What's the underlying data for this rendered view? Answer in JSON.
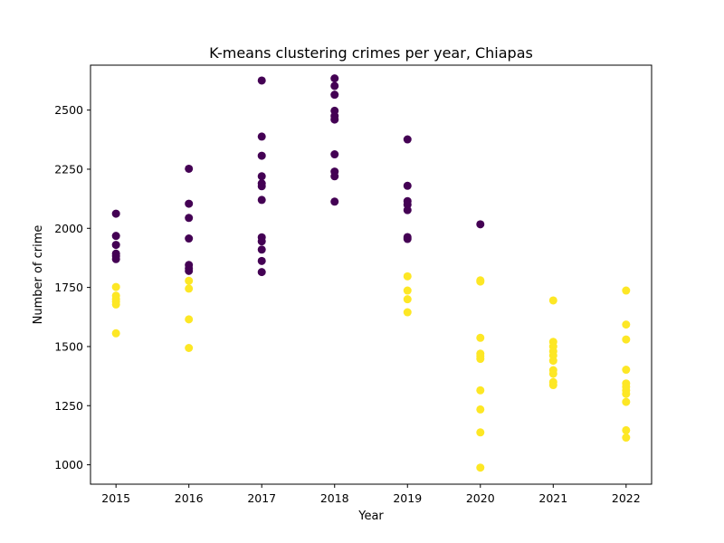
{
  "chart_data": {
    "type": "scatter",
    "title": "K-means clustering crimes per year, Chiapas",
    "xlabel": "Year",
    "ylabel": "Number of crime",
    "xlim": [
      2014.65,
      2022.35
    ],
    "ylim": [
      918,
      2690
    ],
    "x_ticks": [
      2015,
      2016,
      2017,
      2018,
      2019,
      2020,
      2021,
      2022
    ],
    "y_ticks": [
      1000,
      1250,
      1500,
      1750,
      2000,
      2250,
      2500
    ],
    "grid": false,
    "colors": {
      "cluster_0": "#440154",
      "cluster_1": "#fde725"
    },
    "points": [
      {
        "x": 2015,
        "y": 2062,
        "cluster": 0
      },
      {
        "x": 2015,
        "y": 1968,
        "cluster": 0
      },
      {
        "x": 2015,
        "y": 1930,
        "cluster": 0
      },
      {
        "x": 2015,
        "y": 1893,
        "cluster": 0
      },
      {
        "x": 2015,
        "y": 1883,
        "cluster": 0
      },
      {
        "x": 2015,
        "y": 1870,
        "cluster": 0
      },
      {
        "x": 2015,
        "y": 1752,
        "cluster": 1
      },
      {
        "x": 2015,
        "y": 1715,
        "cluster": 1
      },
      {
        "x": 2015,
        "y": 1700,
        "cluster": 1
      },
      {
        "x": 2015,
        "y": 1690,
        "cluster": 1
      },
      {
        "x": 2015,
        "y": 1678,
        "cluster": 1
      },
      {
        "x": 2015,
        "y": 1556,
        "cluster": 1
      },
      {
        "x": 2016,
        "y": 2252,
        "cluster": 0
      },
      {
        "x": 2016,
        "y": 2104,
        "cluster": 0
      },
      {
        "x": 2016,
        "y": 2044,
        "cluster": 0
      },
      {
        "x": 2016,
        "y": 1957,
        "cluster": 0
      },
      {
        "x": 2016,
        "y": 1845,
        "cluster": 0
      },
      {
        "x": 2016,
        "y": 1831,
        "cluster": 0
      },
      {
        "x": 2016,
        "y": 1820,
        "cluster": 0
      },
      {
        "x": 2016,
        "y": 1778,
        "cluster": 1
      },
      {
        "x": 2016,
        "y": 1745,
        "cluster": 1
      },
      {
        "x": 2016,
        "y": 1615,
        "cluster": 1
      },
      {
        "x": 2016,
        "y": 1494,
        "cluster": 1
      },
      {
        "x": 2017,
        "y": 2625,
        "cluster": 0
      },
      {
        "x": 2017,
        "y": 2388,
        "cluster": 0
      },
      {
        "x": 2017,
        "y": 2307,
        "cluster": 0
      },
      {
        "x": 2017,
        "y": 2220,
        "cluster": 0
      },
      {
        "x": 2017,
        "y": 2190,
        "cluster": 0
      },
      {
        "x": 2017,
        "y": 2178,
        "cluster": 0
      },
      {
        "x": 2017,
        "y": 2120,
        "cluster": 0
      },
      {
        "x": 2017,
        "y": 1962,
        "cluster": 0
      },
      {
        "x": 2017,
        "y": 1945,
        "cluster": 0
      },
      {
        "x": 2017,
        "y": 1910,
        "cluster": 0
      },
      {
        "x": 2017,
        "y": 1862,
        "cluster": 0
      },
      {
        "x": 2017,
        "y": 1815,
        "cluster": 0
      },
      {
        "x": 2018,
        "y": 2634,
        "cluster": 0
      },
      {
        "x": 2018,
        "y": 2602,
        "cluster": 0
      },
      {
        "x": 2018,
        "y": 2565,
        "cluster": 0
      },
      {
        "x": 2018,
        "y": 2497,
        "cluster": 0
      },
      {
        "x": 2018,
        "y": 2475,
        "cluster": 0
      },
      {
        "x": 2018,
        "y": 2460,
        "cluster": 0
      },
      {
        "x": 2018,
        "y": 2313,
        "cluster": 0
      },
      {
        "x": 2018,
        "y": 2240,
        "cluster": 0
      },
      {
        "x": 2018,
        "y": 2220,
        "cluster": 0
      },
      {
        "x": 2018,
        "y": 2113,
        "cluster": 0
      },
      {
        "x": 2019,
        "y": 2376,
        "cluster": 0
      },
      {
        "x": 2019,
        "y": 2180,
        "cluster": 0
      },
      {
        "x": 2019,
        "y": 2115,
        "cluster": 0
      },
      {
        "x": 2019,
        "y": 2100,
        "cluster": 0
      },
      {
        "x": 2019,
        "y": 2077,
        "cluster": 0
      },
      {
        "x": 2019,
        "y": 1963,
        "cluster": 0
      },
      {
        "x": 2019,
        "y": 1955,
        "cluster": 0
      },
      {
        "x": 2019,
        "y": 1797,
        "cluster": 1
      },
      {
        "x": 2019,
        "y": 1737,
        "cluster": 1
      },
      {
        "x": 2019,
        "y": 1700,
        "cluster": 1
      },
      {
        "x": 2019,
        "y": 1645,
        "cluster": 1
      },
      {
        "x": 2020,
        "y": 2017,
        "cluster": 0
      },
      {
        "x": 2020,
        "y": 1780,
        "cluster": 1
      },
      {
        "x": 2020,
        "y": 1775,
        "cluster": 1
      },
      {
        "x": 2020,
        "y": 1537,
        "cluster": 1
      },
      {
        "x": 2020,
        "y": 1470,
        "cluster": 1
      },
      {
        "x": 2020,
        "y": 1460,
        "cluster": 1
      },
      {
        "x": 2020,
        "y": 1448,
        "cluster": 1
      },
      {
        "x": 2020,
        "y": 1315,
        "cluster": 1
      },
      {
        "x": 2020,
        "y": 1234,
        "cluster": 1
      },
      {
        "x": 2020,
        "y": 1137,
        "cluster": 1
      },
      {
        "x": 2020,
        "y": 988,
        "cluster": 1
      },
      {
        "x": 2021,
        "y": 1695,
        "cluster": 1
      },
      {
        "x": 2021,
        "y": 1520,
        "cluster": 1
      },
      {
        "x": 2021,
        "y": 1500,
        "cluster": 1
      },
      {
        "x": 2021,
        "y": 1480,
        "cluster": 1
      },
      {
        "x": 2021,
        "y": 1462,
        "cluster": 1
      },
      {
        "x": 2021,
        "y": 1440,
        "cluster": 1
      },
      {
        "x": 2021,
        "y": 1400,
        "cluster": 1
      },
      {
        "x": 2021,
        "y": 1385,
        "cluster": 1
      },
      {
        "x": 2021,
        "y": 1350,
        "cluster": 1
      },
      {
        "x": 2021,
        "y": 1337,
        "cluster": 1
      },
      {
        "x": 2022,
        "y": 1737,
        "cluster": 1
      },
      {
        "x": 2022,
        "y": 1593,
        "cluster": 1
      },
      {
        "x": 2022,
        "y": 1530,
        "cluster": 1
      },
      {
        "x": 2022,
        "y": 1402,
        "cluster": 1
      },
      {
        "x": 2022,
        "y": 1344,
        "cluster": 1
      },
      {
        "x": 2022,
        "y": 1330,
        "cluster": 1
      },
      {
        "x": 2022,
        "y": 1315,
        "cluster": 1
      },
      {
        "x": 2022,
        "y": 1300,
        "cluster": 1
      },
      {
        "x": 2022,
        "y": 1266,
        "cluster": 1
      },
      {
        "x": 2022,
        "y": 1146,
        "cluster": 1
      },
      {
        "x": 2022,
        "y": 1115,
        "cluster": 1
      }
    ]
  }
}
